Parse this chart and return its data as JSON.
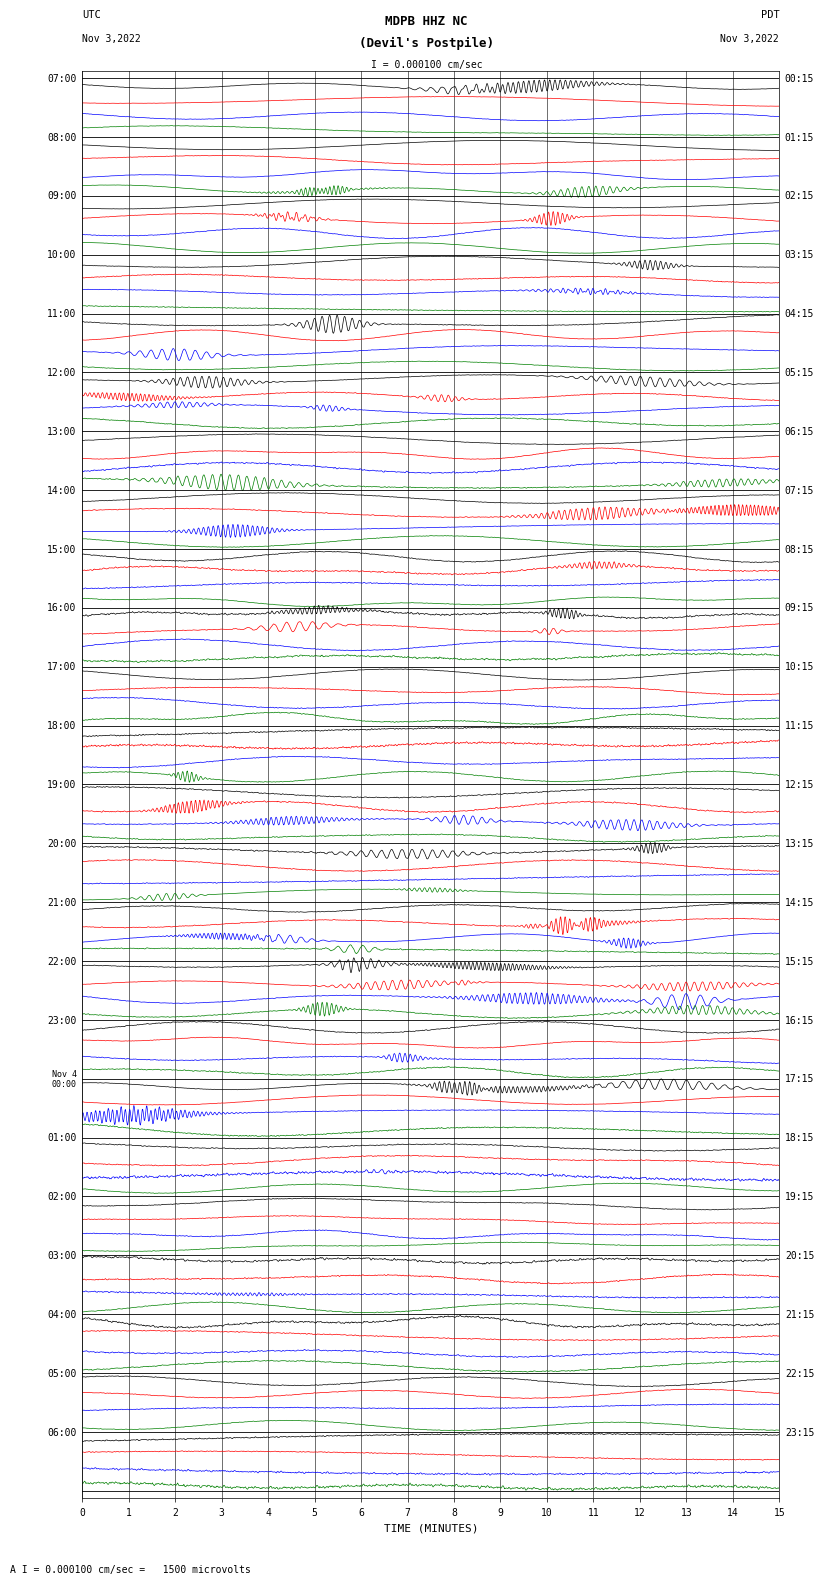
{
  "title_line1": "MDPB HHZ NC",
  "title_line2": "(Devil's Postpile)",
  "scale_text": "I = 0.000100 cm/sec",
  "utc_label": "UTC",
  "utc_date": "Nov 3,2022",
  "pdt_label": "PDT",
  "pdt_date": "Nov 3,2022",
  "xlabel": "TIME (MINUTES)",
  "footer": "A I = 0.000100 cm/sec =   1500 microvolts",
  "left_times": [
    "07:00",
    "08:00",
    "09:00",
    "10:00",
    "11:00",
    "12:00",
    "13:00",
    "14:00",
    "15:00",
    "16:00",
    "17:00",
    "18:00",
    "19:00",
    "20:00",
    "21:00",
    "22:00",
    "23:00",
    "Nov 4\n00:00",
    "01:00",
    "02:00",
    "03:00",
    "04:00",
    "05:00",
    "06:00"
  ],
  "right_times": [
    "00:15",
    "01:15",
    "02:15",
    "03:15",
    "04:15",
    "05:15",
    "06:15",
    "07:15",
    "08:15",
    "09:15",
    "10:15",
    "11:15",
    "12:15",
    "13:15",
    "14:15",
    "15:15",
    "16:15",
    "17:15",
    "18:15",
    "19:15",
    "20:15",
    "21:15",
    "22:15",
    "23:15"
  ],
  "colors": [
    "black",
    "red",
    "blue",
    "green"
  ],
  "bg_color": "#ffffff",
  "n_hours": 24,
  "traces_per_hour": 4,
  "x_ticks": [
    0,
    1,
    2,
    3,
    4,
    5,
    6,
    7,
    8,
    9,
    10,
    11,
    12,
    13,
    14,
    15
  ],
  "x_lim": [
    0,
    15
  ],
  "fig_width": 8.5,
  "fig_height": 16.13
}
